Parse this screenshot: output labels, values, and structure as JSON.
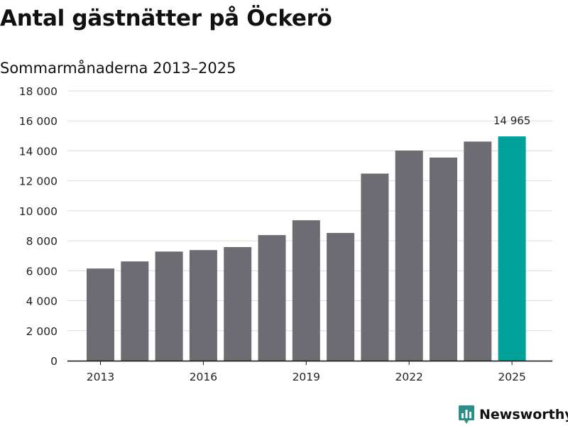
{
  "header": {
    "title": "Antal gästnätter på Öckerö",
    "subtitle": "Sommarmånaderna 2013–2025"
  },
  "brand": {
    "name": "Newsworthy",
    "icon": "newsworthy-logo-icon",
    "color": "#2a8f86"
  },
  "colors": {
    "bar": "#6d6c72",
    "highlight": "#00a19a",
    "grid": "#dcdcdc",
    "axis": "#111111"
  },
  "chart_data": {
    "type": "bar",
    "title": "Antal gästnätter på Öckerö",
    "subtitle": "Sommarmånaderna 2013–2025",
    "xlabel": "",
    "ylabel": "",
    "categories": [
      "2013",
      "2014",
      "2015",
      "2016",
      "2017",
      "2018",
      "2019",
      "2020",
      "2021",
      "2022",
      "2023",
      "2024",
      "2025"
    ],
    "x_tick_labels": [
      "2013",
      "2016",
      "2019",
      "2022",
      "2025"
    ],
    "values": [
      6150,
      6620,
      7280,
      7380,
      7580,
      8380,
      9370,
      8520,
      12480,
      14020,
      13550,
      14620,
      14965
    ],
    "ylim": [
      0,
      18000
    ],
    "y_ticks": [
      0,
      2000,
      4000,
      6000,
      8000,
      10000,
      12000,
      14000,
      16000,
      18000
    ],
    "y_tick_labels": [
      "0",
      "2 000",
      "4 000",
      "6 000",
      "8 000",
      "10 000",
      "12 000",
      "14 000",
      "16 000",
      "18 000"
    ],
    "highlight_index": 12,
    "data_labels": [
      {
        "category": "2025",
        "text": "14 965"
      }
    ],
    "grid": true,
    "legend": "none"
  }
}
